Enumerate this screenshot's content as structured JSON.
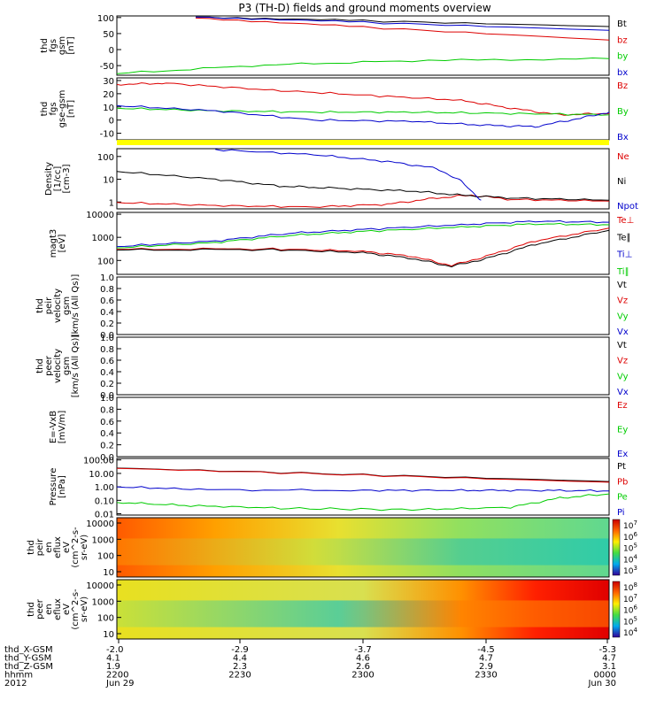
{
  "title": "P3 (TH-D) fields and ground moments overview",
  "colors": {
    "black": "#000000",
    "red": "#dd0000",
    "green": "#00cc00",
    "blue": "#0000cc",
    "yellow": "#ffff00"
  },
  "chart_data": [
    {
      "type": "line",
      "id": "fgs-gsm",
      "ylabel": [
        "thd",
        "fgs",
        "gsm",
        "[nT]"
      ],
      "yticks": [
        "100",
        "50",
        "0",
        "-50"
      ],
      "ylim": [
        -80,
        105
      ],
      "legend": [
        {
          "label": "Bt",
          "color": "black"
        },
        {
          "label": "bz",
          "color": "red"
        },
        {
          "label": "by",
          "color": "green"
        },
        {
          "label": "bx",
          "color": "blue"
        }
      ],
      "series": [
        {
          "name": "Bt",
          "color": "black",
          "x": [
            0.16,
            0.5,
            1.0
          ],
          "y": [
            103,
            90,
            72
          ]
        },
        {
          "name": "bz",
          "color": "red",
          "x": [
            0.16,
            0.5,
            1.0
          ],
          "y": [
            100,
            70,
            30
          ]
        },
        {
          "name": "by",
          "color": "green",
          "x": [
            0,
            0.3,
            0.6,
            1.0
          ],
          "y": [
            -75,
            -48,
            -35,
            -28
          ]
        },
        {
          "name": "bx",
          "color": "blue",
          "x": [
            0.16,
            0.5,
            1.0
          ],
          "y": [
            103,
            85,
            60
          ]
        }
      ]
    },
    {
      "type": "line",
      "id": "fgs-gse",
      "ylabel": [
        "thd",
        "fgs",
        "gse-gsm",
        "[nT]"
      ],
      "yticks": [
        "30",
        "20",
        "10",
        "0",
        "-10"
      ],
      "ylim": [
        -15,
        32
      ],
      "legend": [
        {
          "label": "Bz",
          "color": "red"
        },
        {
          "label": "By",
          "color": "green"
        },
        {
          "label": "Bx",
          "color": "blue"
        }
      ],
      "series": [
        {
          "name": "Bz",
          "color": "red",
          "x": [
            0,
            0.1,
            0.3,
            0.5,
            0.7,
            0.8,
            0.9,
            1.0
          ],
          "y": [
            27,
            28,
            23,
            19,
            15,
            9,
            4,
            5
          ]
        },
        {
          "name": "By",
          "color": "green",
          "x": [
            0,
            0.2,
            0.4,
            0.6,
            0.8,
            1.0
          ],
          "y": [
            9,
            7,
            6,
            6,
            5,
            4
          ]
        },
        {
          "name": "Bx",
          "color": "blue",
          "x": [
            0,
            0.2,
            0.4,
            0.6,
            0.75,
            0.85,
            0.95,
            1.0
          ],
          "y": [
            11,
            7,
            0,
            -1,
            -4,
            -5,
            2,
            6
          ]
        }
      ]
    },
    {
      "type": "line",
      "id": "density",
      "log": true,
      "ylabel": [
        "Density",
        "[1/cc]",
        "[cm-3]"
      ],
      "yticks": [
        "100",
        "10",
        "1"
      ],
      "ylim": [
        0.5,
        220
      ],
      "legend": [
        {
          "label": "Ne",
          "color": "red"
        },
        {
          "label": "Ni",
          "color": "black"
        },
        {
          "label": "Npot",
          "color": "blue"
        }
      ],
      "series": [
        {
          "name": "Ne",
          "color": "red",
          "x": [
            0,
            0.2,
            0.4,
            0.55,
            0.65,
            0.72,
            0.8,
            1.0
          ],
          "y": [
            0.95,
            0.7,
            0.6,
            0.8,
            1.5,
            2,
            1.3,
            1.1
          ]
        },
        {
          "name": "Ni",
          "color": "black",
          "x": [
            0,
            0.2,
            0.33,
            0.45,
            0.6,
            0.7,
            0.8,
            1.0
          ],
          "y": [
            22,
            10,
            5,
            4,
            3,
            2,
            1.5,
            1.2
          ]
        },
        {
          "name": "Npot",
          "color": "blue",
          "x": [
            0.2,
            0.4,
            0.55,
            0.65,
            0.7,
            0.74
          ],
          "y": [
            200,
            120,
            60,
            30,
            8,
            1.2
          ]
        }
      ]
    },
    {
      "type": "line",
      "id": "temperature",
      "log": true,
      "ylabel": [
        "magt3",
        "[eV]"
      ],
      "yticks": [
        "10000",
        "1000",
        "100"
      ],
      "ylim": [
        25,
        12000
      ],
      "legend": [
        {
          "label": "Te⊥",
          "color": "red"
        },
        {
          "label": "Te∥",
          "color": "black"
        },
        {
          "label": "Ti⊥",
          "color": "blue"
        },
        {
          "label": "Ti∥",
          "color": "green"
        }
      ],
      "series": [
        {
          "name": "Te⊥",
          "color": "red",
          "x": [
            0,
            0.3,
            0.5,
            0.6,
            0.68,
            0.75,
            0.85,
            1.0
          ],
          "y": [
            300,
            320,
            250,
            150,
            60,
            150,
            700,
            2500
          ]
        },
        {
          "name": "Te∥",
          "color": "black",
          "x": [
            0,
            0.3,
            0.5,
            0.6,
            0.68,
            0.75,
            0.85,
            1.0
          ],
          "y": [
            280,
            300,
            220,
            120,
            55,
            120,
            500,
            2000
          ]
        },
        {
          "name": "Ti⊥",
          "color": "blue",
          "x": [
            0,
            0.2,
            0.35,
            0.5,
            0.7,
            0.85,
            1.0
          ],
          "y": [
            400,
            700,
            1500,
            2200,
            3500,
            5000,
            4500
          ]
        },
        {
          "name": "Ti∥",
          "color": "green",
          "x": [
            0,
            0.2,
            0.35,
            0.5,
            0.7,
            0.85,
            1.0
          ],
          "y": [
            350,
            600,
            1200,
            1800,
            2800,
            3800,
            3500
          ]
        }
      ]
    },
    {
      "type": "line",
      "id": "peir-velocity",
      "ylabel": [
        "thd",
        "peir",
        "velocity",
        "gsm",
        "[km/s (All Qs)]"
      ],
      "yticks": [
        "1.0",
        "0.8",
        "0.6",
        "0.4",
        "0.2",
        "0.0"
      ],
      "ylim": [
        0,
        1
      ],
      "legend": [
        {
          "label": "Vt",
          "color": "black"
        },
        {
          "label": "Vz",
          "color": "red"
        },
        {
          "label": "Vy",
          "color": "green"
        },
        {
          "label": "Vx",
          "color": "blue"
        }
      ],
      "series": []
    },
    {
      "type": "line",
      "id": "peer-velocity",
      "ylabel": [
        "thd",
        "peer",
        "velocity",
        "gsm",
        "[km/s (All Qs)]"
      ],
      "yticks": [
        "1.0",
        "0.8",
        "0.6",
        "0.4",
        "0.2",
        "0.0"
      ],
      "ylim": [
        0,
        1
      ],
      "legend": [
        {
          "label": "Vt",
          "color": "black"
        },
        {
          "label": "Vz",
          "color": "red"
        },
        {
          "label": "Vy",
          "color": "green"
        },
        {
          "label": "Vx",
          "color": "blue"
        }
      ],
      "series": []
    },
    {
      "type": "line",
      "id": "efield",
      "ylabel": [
        "E=-VxB",
        "[mV/m]"
      ],
      "yticks": [
        "1.0",
        "0.8",
        "0.6",
        "0.4",
        "0.2",
        "0.0"
      ],
      "ylim": [
        0,
        1
      ],
      "legend": [
        {
          "label": "Ez",
          "color": "red"
        },
        {
          "label": "Ey",
          "color": "green"
        },
        {
          "label": "Ex",
          "color": "blue"
        }
      ],
      "series": []
    },
    {
      "type": "line",
      "id": "pressure",
      "log": true,
      "ylabel": [
        "Pressure",
        "[nPa]"
      ],
      "yticks": [
        "100.00",
        "10.00",
        "1.00",
        "0.10",
        "0.01"
      ],
      "ylim": [
        0.008,
        130
      ],
      "legend": [
        {
          "label": "Pt",
          "color": "black"
        },
        {
          "label": "Pb",
          "color": "red"
        },
        {
          "label": "Pe",
          "color": "green"
        },
        {
          "label": "Pi",
          "color": "blue"
        }
      ],
      "series": [
        {
          "name": "Pt",
          "color": "black",
          "x": [
            0,
            0.5,
            1.0
          ],
          "y": [
            25,
            8,
            2.5
          ]
        },
        {
          "name": "Pb",
          "color": "red",
          "x": [
            0,
            0.5,
            1.0
          ],
          "y": [
            24,
            7.5,
            2.2
          ]
        },
        {
          "name": "Pe",
          "color": "green",
          "x": [
            0,
            0.15,
            0.35,
            0.6,
            0.8,
            0.9,
            1.0
          ],
          "y": [
            0.07,
            0.04,
            0.025,
            0.02,
            0.03,
            0.15,
            0.3
          ]
        },
        {
          "name": "Pi",
          "color": "blue",
          "x": [
            0,
            0.2,
            0.5,
            0.7,
            0.85,
            1.0
          ],
          "y": [
            1.0,
            0.6,
            0.55,
            0.55,
            0.55,
            0.5
          ]
        }
      ]
    },
    {
      "type": "heatmap",
      "id": "peir-spec",
      "ylabel": [
        "thd",
        "peir",
        "en",
        "eflux",
        "eV",
        "(cm^2-s-",
        "sr-eV)"
      ],
      "yticks": [
        "10000",
        "1000",
        "100",
        "10"
      ],
      "colorbar": [
        "10^7",
        "10^6",
        "10^5",
        "10^4",
        "10^3"
      ]
    },
    {
      "type": "heatmap",
      "id": "peer-spec",
      "ylabel": [
        "thd",
        "peer",
        "en",
        "eflux",
        "eV",
        "(cm^2-s-",
        "sr-eV)"
      ],
      "yticks": [
        "10000",
        "1000",
        "100",
        "10"
      ],
      "colorbar": [
        "10^8",
        "10^7",
        "10^6",
        "10^5",
        "10^4"
      ]
    }
  ],
  "x_axis": {
    "rows": [
      {
        "label": "thd_X-GSM",
        "values": [
          "-2.0",
          "-2.9",
          "-3.7",
          "-4.5",
          "-5.3"
        ]
      },
      {
        "label": "thd_Y-GSM",
        "values": [
          "4.1",
          "4.4",
          "4.6",
          "4.7",
          "4.7"
        ]
      },
      {
        "label": "thd_Z-GSM",
        "values": [
          "1.9",
          "2.3",
          "2.6",
          "2.9",
          "3.1"
        ]
      },
      {
        "label": "hhmm",
        "values": [
          "2200",
          "2230",
          "2300",
          "2330",
          "0000"
        ]
      },
      {
        "label": "2012",
        "values": [
          "Jun 29",
          "",
          "",
          "",
          "Jun 30"
        ]
      }
    ]
  }
}
